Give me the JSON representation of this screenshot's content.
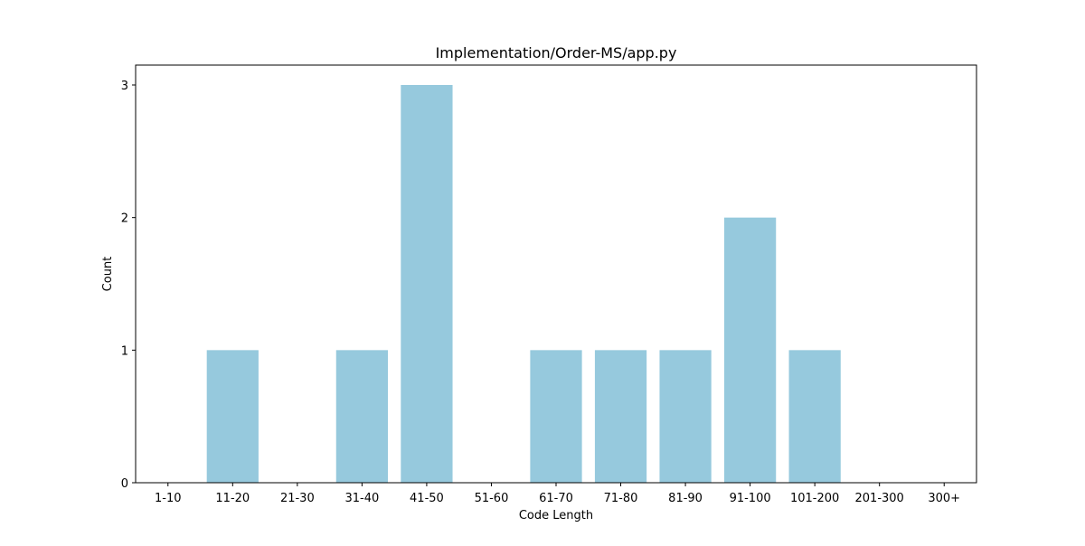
{
  "chart_data": {
    "type": "bar",
    "title": "Implementation/Order-MS/app.py",
    "xlabel": "Code Length",
    "ylabel": "Count",
    "categories": [
      "1-10",
      "11-20",
      "21-30",
      "31-40",
      "41-50",
      "51-60",
      "61-70",
      "71-80",
      "81-90",
      "91-100",
      "101-200",
      "201-300",
      "300+"
    ],
    "values": [
      0,
      1,
      0,
      1,
      3,
      0,
      1,
      1,
      1,
      2,
      1,
      0,
      0
    ],
    "yticks": [
      0,
      1,
      2,
      3
    ],
    "ylim": [
      0,
      3.15
    ],
    "grid": false,
    "colors": {
      "bar": "#96c9dd",
      "axis": "#000000",
      "background": "#ffffff"
    }
  }
}
